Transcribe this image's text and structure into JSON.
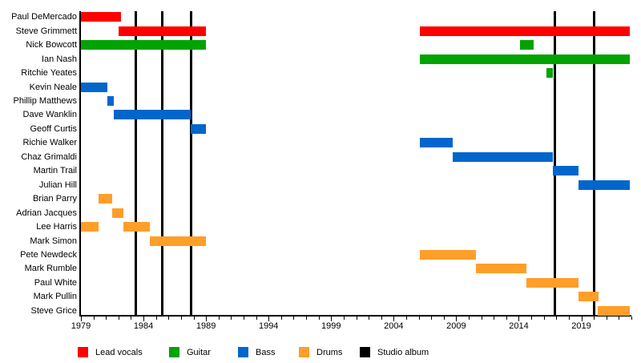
{
  "chart_data": {
    "type": "bar",
    "subtype": "band-members-timeline",
    "title": "",
    "x_axis": {
      "min": 1979,
      "max": 2023,
      "major_ticks": [
        1979,
        1984,
        1989,
        1994,
        1999,
        2004,
        2009,
        2014,
        2019
      ],
      "major_tick_labels": [
        "1979",
        "1984",
        "1989",
        "1994",
        "1999",
        "2004",
        "2009",
        "2014",
        "2019"
      ],
      "minor_tick_interval": 1
    },
    "roles": {
      "lead_vocals": {
        "label": "Lead vocals",
        "color": "#fe0000"
      },
      "guitar": {
        "label": "Guitar",
        "color": "#00a300"
      },
      "bass": {
        "label": "Bass",
        "color": "#0066cc"
      },
      "drums": {
        "label": "Drums",
        "color": "#ff9e29"
      },
      "studio_album": {
        "label": "Studio album",
        "color": "#000000"
      }
    },
    "legend_order": [
      "lead_vocals",
      "guitar",
      "bass",
      "drums",
      "studio_album"
    ],
    "members": [
      {
        "name": "Paul DeMercado",
        "role": "lead_vocals",
        "periods": [
          [
            1979.0,
            1982.2
          ]
        ]
      },
      {
        "name": "Steve Grimmett",
        "role": "lead_vocals",
        "periods": [
          [
            1982.0,
            1989.0
          ],
          [
            2006.1,
            2022.9
          ]
        ]
      },
      {
        "name": "Nick Bowcott",
        "role": "guitar",
        "periods": [
          [
            1979.0,
            1989.0
          ],
          [
            2014.1,
            2015.2
          ]
        ]
      },
      {
        "name": "Ian Nash",
        "role": "guitar",
        "periods": [
          [
            2006.1,
            2022.9
          ]
        ]
      },
      {
        "name": "Ritchie Yeates",
        "role": "guitar",
        "periods": [
          [
            2016.2,
            2016.7
          ]
        ]
      },
      {
        "name": "Kevin Neale",
        "role": "bass",
        "periods": [
          [
            1979.0,
            1981.1
          ]
        ]
      },
      {
        "name": "Phillip Matthews",
        "role": "bass",
        "periods": [
          [
            1981.1,
            1981.6
          ]
        ]
      },
      {
        "name": "Dave Wanklin",
        "role": "bass",
        "periods": [
          [
            1981.6,
            1987.8
          ]
        ]
      },
      {
        "name": "Geoff Curtis",
        "role": "bass",
        "periods": [
          [
            1987.8,
            1989.0
          ]
        ]
      },
      {
        "name": "Richie Walker",
        "role": "bass",
        "periods": [
          [
            2006.1,
            2008.7
          ]
        ]
      },
      {
        "name": "Chaz Grimaldi",
        "role": "bass",
        "periods": [
          [
            2008.7,
            2016.7
          ]
        ]
      },
      {
        "name": "Martin Trail",
        "role": "bass",
        "periods": [
          [
            2016.7,
            2018.8
          ]
        ]
      },
      {
        "name": "Julian Hill",
        "role": "bass",
        "periods": [
          [
            2018.8,
            2022.9
          ]
        ]
      },
      {
        "name": "Brian Parry",
        "role": "drums",
        "periods": [
          [
            1980.4,
            1981.5
          ]
        ]
      },
      {
        "name": "Adrian Jacques",
        "role": "drums",
        "periods": [
          [
            1981.5,
            1982.4
          ]
        ]
      },
      {
        "name": "Lee Harris",
        "role": "drums",
        "periods": [
          [
            1979.0,
            1980.4
          ],
          [
            1982.4,
            1984.5
          ]
        ]
      },
      {
        "name": "Mark Simon",
        "role": "drums",
        "periods": [
          [
            1984.5,
            1989.0
          ]
        ]
      },
      {
        "name": "Pete Newdeck",
        "role": "drums",
        "periods": [
          [
            2006.1,
            2010.6
          ]
        ]
      },
      {
        "name": "Mark Rumble",
        "role": "drums",
        "periods": [
          [
            2010.6,
            2014.6
          ]
        ]
      },
      {
        "name": "Paul White",
        "role": "drums",
        "periods": [
          [
            2014.6,
            2018.8
          ]
        ]
      },
      {
        "name": "Mark Pullin",
        "role": "drums",
        "periods": [
          [
            2018.8,
            2020.4
          ]
        ]
      },
      {
        "name": "Steve Grice",
        "role": "drums",
        "periods": [
          [
            2020.3,
            2022.9
          ]
        ]
      }
    ],
    "album_lines": [
      1983.4,
      1985.5,
      1987.8,
      2016.9,
      2020.0
    ]
  }
}
